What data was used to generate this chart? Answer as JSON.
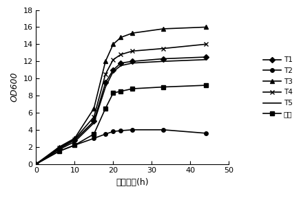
{
  "title": "",
  "xlabel": "发酵时间(h)",
  "ylabel": "OD600",
  "xlim": [
    0,
    50
  ],
  "ylim": [
    0,
    18
  ],
  "xticks": [
    0,
    10,
    20,
    30,
    40,
    50
  ],
  "yticks": [
    0,
    2,
    4,
    6,
    8,
    10,
    12,
    14,
    16,
    18
  ],
  "series": [
    {
      "label": "T1",
      "x": [
        0,
        6,
        10,
        15,
        18,
        20,
        22,
        25,
        33,
        44
      ],
      "y": [
        0,
        1.8,
        2.8,
        5.0,
        9.5,
        11.0,
        11.8,
        12.0,
        12.3,
        12.5
      ],
      "marker": "D",
      "markersize": 4
    },
    {
      "label": "T2",
      "x": [
        0,
        6,
        10,
        15,
        18,
        20,
        22,
        25,
        33,
        44
      ],
      "y": [
        0,
        1.5,
        2.2,
        3.0,
        3.5,
        3.8,
        3.9,
        4.0,
        4.0,
        3.6
      ],
      "marker": "o",
      "markersize": 4
    },
    {
      "label": "T3",
      "x": [
        0,
        6,
        10,
        15,
        18,
        20,
        22,
        25,
        33,
        44
      ],
      "y": [
        0,
        2.0,
        3.0,
        6.5,
        12.0,
        14.0,
        14.8,
        15.3,
        15.8,
        16.0
      ],
      "marker": "^",
      "markersize": 5
    },
    {
      "label": "T4",
      "x": [
        0,
        6,
        10,
        15,
        18,
        20,
        22,
        25,
        33,
        44
      ],
      "y": [
        0,
        1.9,
        2.9,
        5.5,
        10.5,
        12.2,
        12.8,
        13.2,
        13.5,
        14.0
      ],
      "marker": "x",
      "markersize": 5
    },
    {
      "label": "T5",
      "x": [
        0,
        6,
        10,
        15,
        18,
        20,
        22,
        25,
        33,
        44
      ],
      "y": [
        0,
        1.7,
        2.6,
        4.8,
        9.0,
        10.8,
        11.5,
        11.8,
        12.0,
        12.2
      ],
      "marker": "",
      "markersize": 0
    },
    {
      "label": "商业",
      "x": [
        0,
        6,
        10,
        15,
        18,
        20,
        22,
        25,
        33,
        44
      ],
      "y": [
        0,
        1.5,
        2.2,
        3.5,
        6.5,
        8.3,
        8.5,
        8.8,
        9.0,
        9.2
      ],
      "marker": "s",
      "markersize": 5
    }
  ],
  "background_color": "#ffffff",
  "font_size": 9,
  "linewidth": 1.2
}
